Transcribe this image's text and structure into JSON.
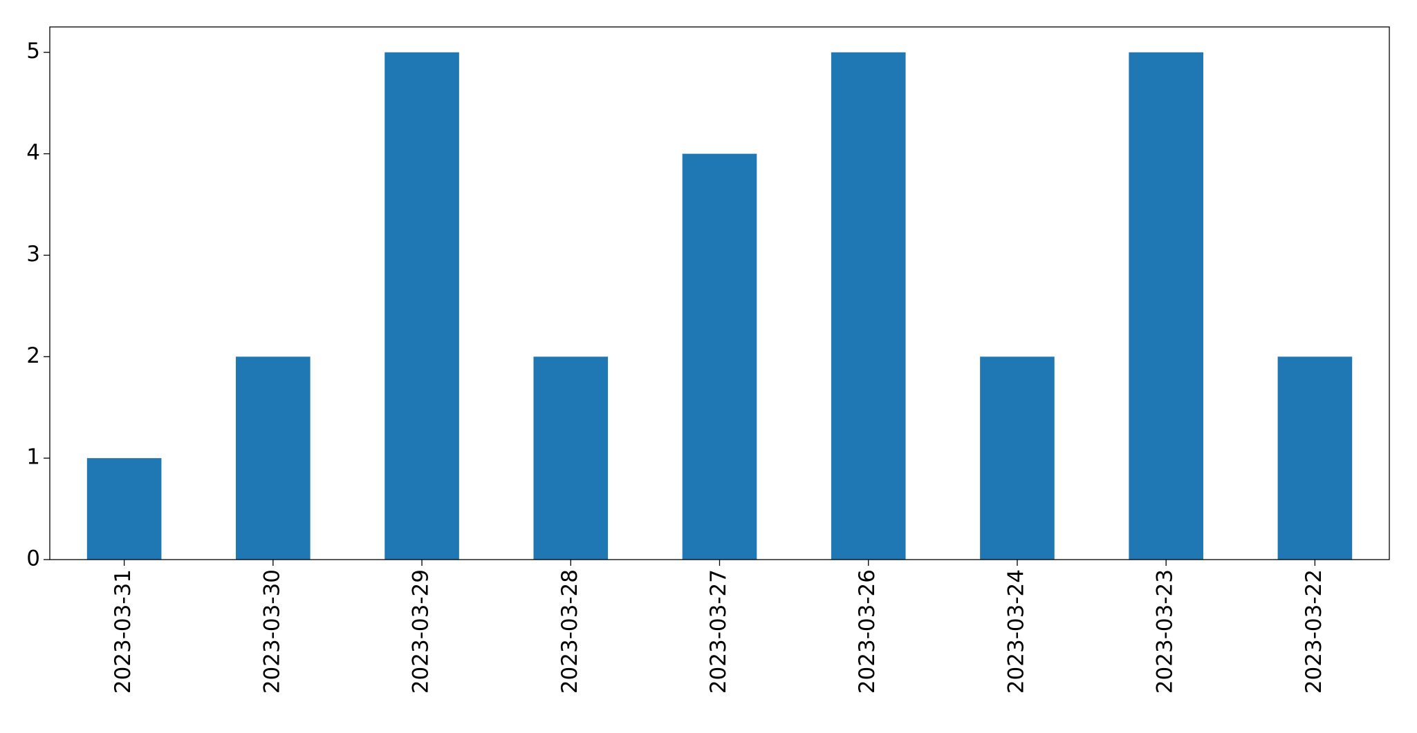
{
  "chart_data": {
    "type": "bar",
    "categories": [
      "2023-03-31",
      "2023-03-30",
      "2023-03-29",
      "2023-03-28",
      "2023-03-27",
      "2023-03-26",
      "2023-03-24",
      "2023-03-23",
      "2023-03-22"
    ],
    "values": [
      1,
      2,
      5,
      2,
      4,
      5,
      2,
      5,
      2
    ],
    "color": "#1f77b4",
    "ylim": [
      0,
      5.25
    ],
    "yticks": [
      0,
      1,
      2,
      3,
      4,
      5
    ],
    "grid": false
  }
}
